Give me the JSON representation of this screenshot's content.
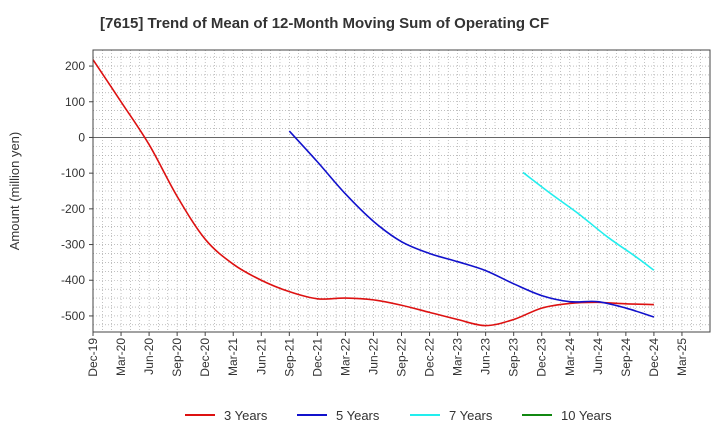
{
  "chart_data": {
    "type": "line",
    "title": "[7615]  Trend of Mean of 12-Month Moving Sum of Operating CF",
    "xlabel": "",
    "ylabel": "Amount (million yen)",
    "ylim": [
      -545,
      245
    ],
    "yticks": [
      200,
      100,
      0,
      -100,
      -200,
      -300,
      -400,
      -500
    ],
    "x_range": [
      0,
      66
    ],
    "x_tick_labels": [
      "Dec-19",
      "Mar-20",
      "Jun-20",
      "Sep-20",
      "Dec-20",
      "Mar-21",
      "Jun-21",
      "Sep-21",
      "Dec-21",
      "Mar-22",
      "Jun-22",
      "Sep-22",
      "Dec-22",
      "Mar-23",
      "Jun-23",
      "Sep-23",
      "Dec-23",
      "Mar-24",
      "Jun-24",
      "Sep-24",
      "Dec-24",
      "Mar-25"
    ],
    "grid": true,
    "legend_position": "bottom",
    "series": [
      {
        "name": "3 Years",
        "color": "#dd1111",
        "points": [
          [
            0,
            218
          ],
          [
            3,
            100
          ],
          [
            6,
            -20
          ],
          [
            9,
            -165
          ],
          [
            12,
            -285
          ],
          [
            15,
            -355
          ],
          [
            18,
            -400
          ],
          [
            21,
            -432
          ],
          [
            24,
            -452
          ],
          [
            27,
            -450
          ],
          [
            30,
            -455
          ],
          [
            33,
            -470
          ],
          [
            36,
            -490
          ],
          [
            39,
            -510
          ],
          [
            42,
            -527
          ],
          [
            45,
            -510
          ],
          [
            48,
            -478
          ],
          [
            51,
            -465
          ],
          [
            54,
            -462
          ],
          [
            57,
            -466
          ],
          [
            60,
            -468
          ]
        ]
      },
      {
        "name": "5 Years",
        "color": "#1111cc",
        "points": [
          [
            21,
            18
          ],
          [
            24,
            -68
          ],
          [
            27,
            -158
          ],
          [
            30,
            -235
          ],
          [
            33,
            -292
          ],
          [
            36,
            -325
          ],
          [
            39,
            -348
          ],
          [
            42,
            -373
          ],
          [
            45,
            -410
          ],
          [
            48,
            -443
          ],
          [
            51,
            -460
          ],
          [
            54,
            -460
          ],
          [
            57,
            -478
          ],
          [
            60,
            -503
          ]
        ]
      },
      {
        "name": "7 Years",
        "color": "#22eeee",
        "points": [
          [
            46,
            -98
          ],
          [
            49,
            -158
          ],
          [
            52,
            -215
          ],
          [
            55,
            -278
          ],
          [
            58,
            -333
          ],
          [
            60,
            -372
          ]
        ]
      },
      {
        "name": "10 Years",
        "color": "#118811",
        "points": []
      }
    ]
  }
}
